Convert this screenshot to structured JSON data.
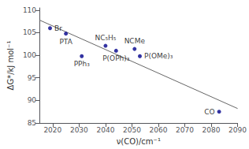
{
  "chart_data": {
    "type": "scatter",
    "xlabel": "ν(CO)/cm⁻¹",
    "ylabel": "ΔG*/kJ mol⁻¹",
    "series": [
      {
        "type": "scatter",
        "color": "#00008B",
        "marker": "circle",
        "x": [
          2019,
          2025,
          2031,
          2040,
          2044,
          2051,
          2053,
          2083
        ],
        "values": [
          106.0,
          104.8,
          99.8,
          102.1,
          101.0,
          101.4,
          99.8,
          87.5
        ],
        "labels": [
          "Br",
          "PTA",
          "PPh₃",
          "NC₅H₅",
          "P(OPh)₃",
          "NCMe",
          "P(OMe)₃",
          "CO"
        ]
      },
      {
        "type": "line",
        "color": "#666666",
        "line_style": "solid",
        "x": [
          2015,
          2090
        ],
        "values": [
          107.8,
          88.2
        ]
      }
    ],
    "xlim": [
      2015,
      2090
    ],
    "ylim": [
      85.0,
      110.5
    ],
    "xticks": [
      2020,
      2030,
      2040,
      2050,
      2060,
      2070,
      2080,
      2090
    ],
    "yticks": [
      85,
      90,
      95,
      100,
      105,
      110
    ],
    "grid": false
  }
}
